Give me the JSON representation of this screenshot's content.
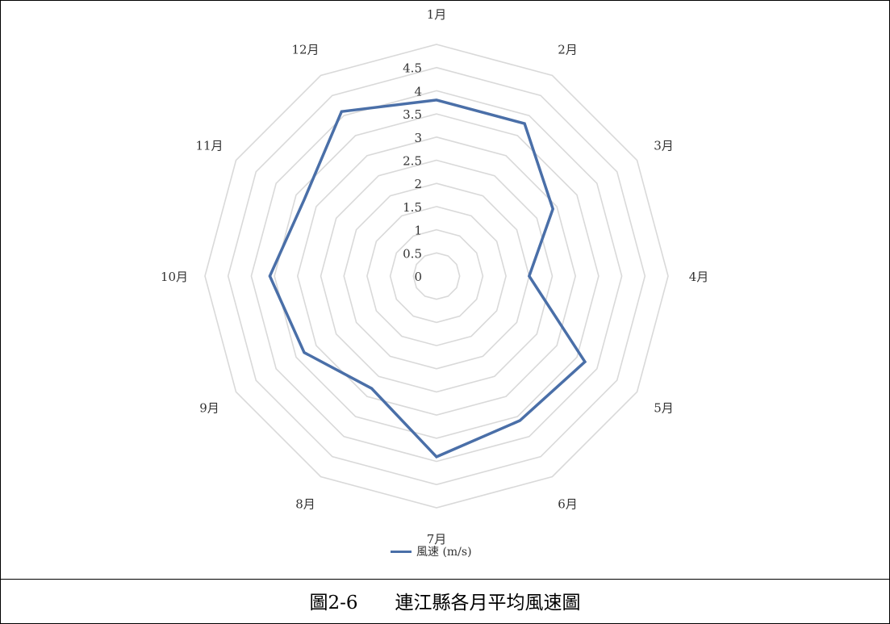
{
  "chart_data": {
    "type": "radar",
    "categories": [
      "1月",
      "2月",
      "3月",
      "4月",
      "5月",
      "6月",
      "7月",
      "8月",
      "9月",
      "10月",
      "11月",
      "12月"
    ],
    "series": [
      {
        "name": "風速 (m/s)",
        "color": "#4a6fa8",
        "values": [
          3.8,
          3.8,
          2.9,
          2.0,
          3.7,
          3.6,
          3.9,
          2.8,
          3.3,
          3.6,
          3.3,
          4.1
        ]
      }
    ],
    "radial_ticks": [
      "0",
      "0.5",
      "1",
      "1.5",
      "2",
      "2.5",
      "3",
      "3.5",
      "4",
      "4.5"
    ],
    "rlim": [
      0,
      5
    ],
    "grid": true,
    "legend_position": "bottom"
  },
  "caption": {
    "figure_no": "圖2-6",
    "title": "連江縣各月平均風速圖"
  }
}
